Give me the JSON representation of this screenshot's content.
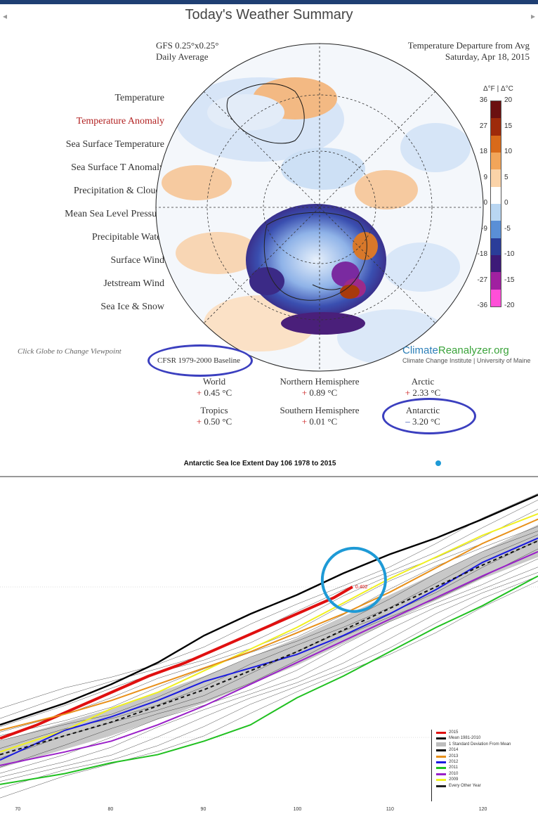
{
  "header": {
    "title": "Today's Weather Summary",
    "prev_arrow": "◂",
    "next_arrow": "▸"
  },
  "model": {
    "line1": "GFS 0.25°x0.25°",
    "line2": "Daily Average"
  },
  "anomaly": {
    "line1": "Temperature Departure from Avg",
    "line2": "Saturday, Apr 18, 2015"
  },
  "menu": [
    {
      "label": "Temperature",
      "active": false
    },
    {
      "label": "Temperature Anomaly",
      "active": true
    },
    {
      "label": "Sea Surface Temperature",
      "active": false
    },
    {
      "label": "Sea Surface T Anomaly",
      "active": false
    },
    {
      "label": "Precipitation & Clouds",
      "active": false
    },
    {
      "label": "Mean Sea Level Pressure",
      "active": false
    },
    {
      "label": "Precipitable Water",
      "active": false
    },
    {
      "label": "Surface Wind",
      "active": false
    },
    {
      "label": "Jetstream Wind",
      "active": false
    },
    {
      "label": "Sea Ice & Snow",
      "active": false
    }
  ],
  "colorbar": {
    "title": "Δ°F | Δ°C",
    "ticks_f": [
      "36",
      "27",
      "18",
      "9",
      "0",
      "-9",
      "-18",
      "-27",
      "-36"
    ],
    "ticks_c": [
      "20",
      "15",
      "10",
      "5",
      "0",
      "-5",
      "-10",
      "-15",
      "-20"
    ],
    "colors": [
      "#ff4fd8",
      "#a020a0",
      "#3d1a78",
      "#2a3d99",
      "#5a8fd6",
      "#b9d6f2",
      "#ffffff",
      "#fbd3a8",
      "#f2a55a",
      "#d86a1a",
      "#9e2a0a",
      "#6b1010"
    ]
  },
  "globe_note": "Click Globe to Change Viewpoint",
  "logo": {
    "main_a": "Climate",
    "main_b": "Reanalyzer",
    "main_c": ".org",
    "sub": "Climate Change Institute | University of Maine"
  },
  "baseline": "CFSR 1979-2000 Baseline",
  "stats": [
    {
      "region": "World",
      "sign": "+",
      "value": "0.45 °C"
    },
    {
      "region": "Northern Hemisphere",
      "sign": "+",
      "value": "0.89 °C"
    },
    {
      "region": "Arctic",
      "sign": "+",
      "value": "2.33 °C"
    },
    {
      "region": "Tropics",
      "sign": "+",
      "value": "0.50 °C"
    },
    {
      "region": "Southern Hemisphere",
      "sign": "+",
      "value": "0.01 °C"
    },
    {
      "region": "Antarctic",
      "sign": "–",
      "value": "3.20 °C"
    }
  ],
  "chart_data": {
    "type": "line",
    "title": "Antarctic Sea Ice Extent Day 106 1978 to 2015",
    "xlabel": "",
    "ylabel": "",
    "xlim": [
      68,
      126
    ],
    "x_ticks": [
      "70",
      "80",
      "90",
      "100",
      "110",
      "120"
    ],
    "annotation": "0.402",
    "legend": [
      {
        "label": "2015",
        "color": "#e01010"
      },
      {
        "label": "Mean 1981-2010",
        "color": "#111111"
      },
      {
        "label": "1 Standard Deviation From Mean",
        "color": "#bdbdbd"
      },
      {
        "label": "2014",
        "color": "#000000"
      },
      {
        "label": "2013",
        "color": "#e8901a"
      },
      {
        "label": "2012",
        "color": "#1a1ae0"
      },
      {
        "label": "2011",
        "color": "#20c020"
      },
      {
        "label": "2010",
        "color": "#9a20c8"
      },
      {
        "label": "2009",
        "color": "#f0f020"
      },
      {
        "label": "Every Other Year",
        "color": "#222222"
      }
    ],
    "series": [
      {
        "name": "2014",
        "x": [
          68,
          75,
          80,
          85,
          90,
          95,
          100,
          105,
          110,
          115,
          120,
          126
        ],
        "y": [
          0.08,
          0.16,
          0.23,
          0.31,
          0.41,
          0.49,
          0.56,
          0.64,
          0.71,
          0.77,
          0.84,
          0.93
        ]
      },
      {
        "name": "2015",
        "x": [
          68,
          72,
          76,
          80,
          84,
          88,
          92,
          96,
          100,
          104,
          106
        ],
        "y": [
          0.03,
          0.08,
          0.14,
          0.2,
          0.26,
          0.31,
          0.37,
          0.43,
          0.49,
          0.55,
          0.59
        ]
      },
      {
        "name": "2009",
        "x": [
          68,
          75,
          80,
          85,
          90,
          95,
          100,
          105,
          110,
          115,
          120,
          126
        ],
        "y": [
          -0.02,
          0.06,
          0.14,
          0.2,
          0.28,
          0.36,
          0.44,
          0.53,
          0.62,
          0.7,
          0.78,
          0.86
        ]
      },
      {
        "name": "2013",
        "x": [
          68,
          75,
          80,
          85,
          90,
          95,
          100,
          105,
          110,
          115,
          120,
          126
        ],
        "y": [
          0.06,
          0.12,
          0.17,
          0.23,
          0.29,
          0.35,
          0.42,
          0.49,
          0.57,
          0.66,
          0.75,
          0.84
        ]
      },
      {
        "name": "2012",
        "x": [
          68,
          75,
          80,
          85,
          90,
          95,
          100,
          105,
          110,
          115,
          120,
          126
        ],
        "y": [
          -0.05,
          0.06,
          0.11,
          0.17,
          0.24,
          0.29,
          0.34,
          0.41,
          0.49,
          0.58,
          0.68,
          0.77
        ]
      },
      {
        "name": "2010",
        "x": [
          68,
          75,
          80,
          85,
          90,
          95,
          100,
          105,
          110,
          115,
          120,
          126
        ],
        "y": [
          -0.07,
          -0.02,
          0.02,
          0.08,
          0.15,
          0.23,
          0.31,
          0.39,
          0.47,
          0.55,
          0.63,
          0.72
        ]
      },
      {
        "name": "2011",
        "x": [
          68,
          75,
          80,
          85,
          90,
          95,
          100,
          105,
          110,
          115,
          120,
          126
        ],
        "y": [
          -0.14,
          -0.1,
          -0.06,
          -0.03,
          0.02,
          0.08,
          0.18,
          0.26,
          0.35,
          0.44,
          0.52,
          0.63
        ]
      },
      {
        "name": "Mean 1981-2010",
        "x": [
          68,
          75,
          80,
          85,
          90,
          95,
          100,
          105,
          110,
          115,
          120,
          126
        ],
        "y": [
          -0.03,
          0.04,
          0.09,
          0.15,
          0.21,
          0.28,
          0.35,
          0.43,
          0.51,
          0.59,
          0.67,
          0.76
        ]
      }
    ],
    "band": {
      "x": [
        68,
        75,
        80,
        85,
        90,
        95,
        100,
        105,
        110,
        115,
        120,
        126
      ],
      "lower": [
        -0.08,
        -0.01,
        0.04,
        0.1,
        0.16,
        0.23,
        0.3,
        0.38,
        0.46,
        0.54,
        0.62,
        0.7
      ],
      "upper": [
        0.02,
        0.09,
        0.14,
        0.2,
        0.26,
        0.33,
        0.4,
        0.48,
        0.56,
        0.64,
        0.72,
        0.82
      ]
    }
  }
}
